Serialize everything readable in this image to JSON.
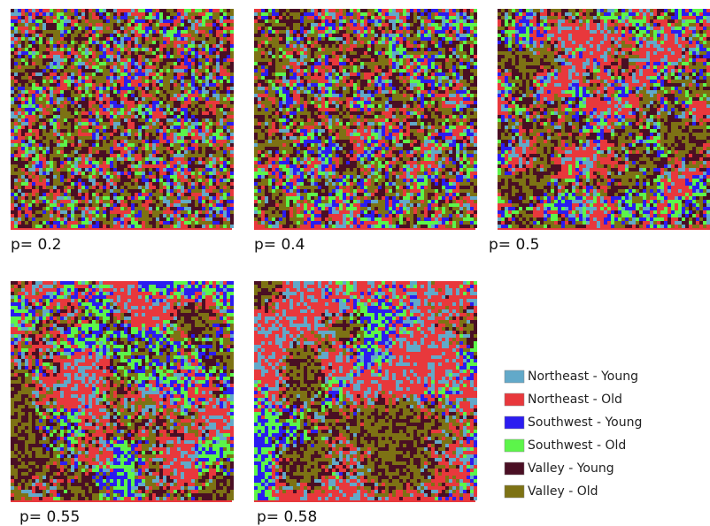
{
  "panels": [
    {
      "label": "p= 0.2"
    },
    {
      "label": "p= 0.4"
    },
    {
      "label": "p= 0.5"
    },
    {
      "label": "p= 0.55"
    },
    {
      "label": "p= 0.58"
    }
  ],
  "legend": [
    {
      "label": "Northeast - Young",
      "color": "#62a9c9"
    },
    {
      "label": "Northeast - Old",
      "color": "#e8383c"
    },
    {
      "label": "Southwest - Young",
      "color": "#2b1cf0"
    },
    {
      "label": "Southwest - Old",
      "color": "#5cf54a"
    },
    {
      "label": "Valley - Young",
      "color": "#4a0f24"
    },
    {
      "label": "Valley - Old",
      "color": "#7d7214"
    }
  ]
}
